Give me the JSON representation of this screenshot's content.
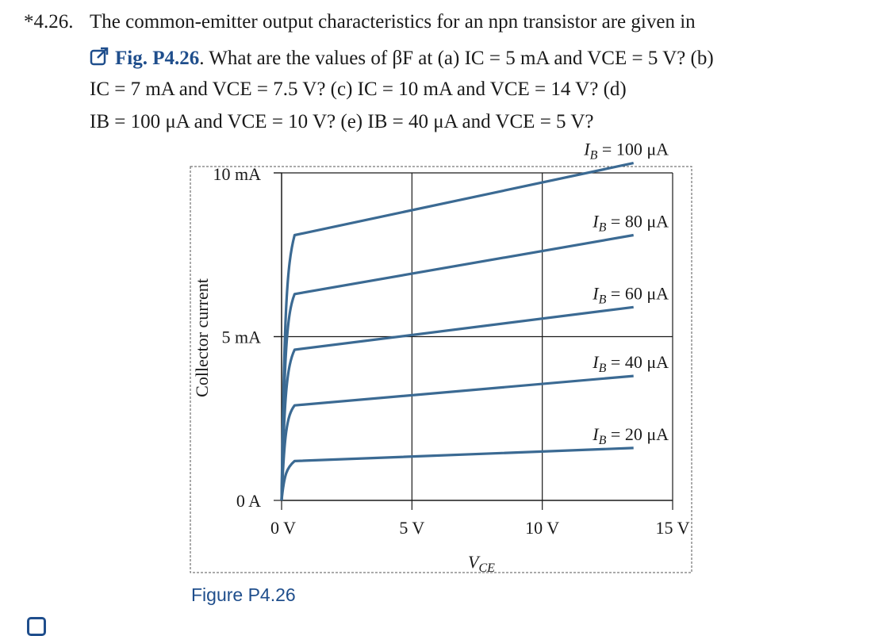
{
  "problem": {
    "number": "*4.26.",
    "line1": "The common-emitter output characteristics for an npn transistor are given in",
    "fig_ref": "Fig. P4.26",
    "line2_rest": ". What are the values of βF at (a) IC = 5 mA and VCE = 5 V? (b)",
    "line3": "IC = 7 mA and VCE = 7.5 V? (c) IC = 10 mA and VCE = 14 V? (d)",
    "line4": "IB = 100 μA and VCE = 10 V? (e) IB = 40 μA and VCE = 5 V?"
  },
  "figure_caption": "Figure P4.26",
  "colors": {
    "curve": "#3b6a93",
    "link": "#1f4e8c",
    "axis": "#1a1a1a"
  },
  "icons": {
    "figure_link": "external-link-icon",
    "corner": "bookmark-icon"
  },
  "chart_data": {
    "type": "line",
    "xlabel": "VCE",
    "ylabel": "Collector current",
    "xlim": [
      0,
      15
    ],
    "ylim": [
      0,
      10
    ],
    "x_tick_labels": [
      "0 V",
      "5 V",
      "10 V",
      "15 V"
    ],
    "x_ticks": [
      0,
      5,
      10,
      15
    ],
    "y_tick_labels": [
      "0 A",
      "5 mA",
      "10 mA"
    ],
    "y_ticks": [
      0,
      5,
      10
    ],
    "grid": true,
    "series": [
      {
        "name": "IB = 20 μA",
        "x": [
          0,
          0.1,
          0.2,
          0.5,
          13.5
        ],
        "y": [
          0,
          0.8,
          1.0,
          1.2,
          1.6
        ]
      },
      {
        "name": "IB = 40 μA",
        "x": [
          0,
          0.1,
          0.2,
          0.5,
          13.5
        ],
        "y": [
          0,
          2.0,
          2.6,
          2.9,
          3.8
        ]
      },
      {
        "name": "IB = 60 μA",
        "x": [
          0,
          0.1,
          0.2,
          0.5,
          13.5
        ],
        "y": [
          0,
          3.2,
          4.1,
          4.6,
          5.9
        ]
      },
      {
        "name": "IB = 80 μA",
        "x": [
          0,
          0.1,
          0.2,
          0.5,
          13.5
        ],
        "y": [
          0,
          4.5,
          5.7,
          6.3,
          8.1
        ]
      },
      {
        "name": "IB = 100 μA",
        "x": [
          0,
          0.1,
          0.2,
          0.5,
          13.5
        ],
        "y": [
          0,
          5.8,
          7.2,
          8.1,
          10.3
        ]
      }
    ]
  }
}
